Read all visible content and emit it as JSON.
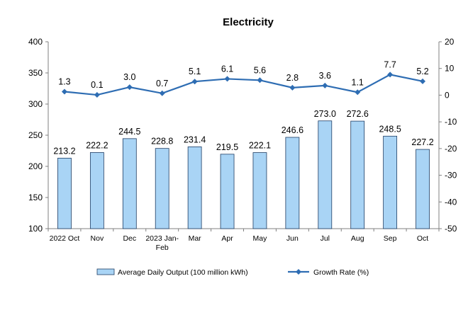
{
  "chart_data": {
    "type": "bar",
    "title": "Electricity",
    "categories": [
      "2022 Oct",
      "Nov",
      "Dec",
      "2023 Jan-Feb",
      "Mar",
      "Apr",
      "May",
      "Jun",
      "Jul",
      "Aug",
      "Sep",
      "Oct"
    ],
    "series": [
      {
        "name": "Average Daily Output (100 million kWh)",
        "type": "bar",
        "axis": "left",
        "color": "#a9d4f5",
        "labels": [
          "213.2",
          "222.2",
          "244.5",
          "228.8",
          "231.4",
          "219.5",
          "222.1",
          "246.6",
          "273.0",
          "272.6",
          "248.5",
          "227.2"
        ],
        "values": [
          213.2,
          222.2,
          244.5,
          228.8,
          231.4,
          219.5,
          222.1,
          246.6,
          273.0,
          272.6,
          248.5,
          227.2
        ]
      },
      {
        "name": "Growth Rate (%)",
        "type": "line",
        "axis": "right",
        "color": "#2e6db3",
        "labels": [
          "1.3",
          "0.1",
          "3.0",
          "0.7",
          "5.1",
          "6.1",
          "5.6",
          "2.8",
          "3.6",
          "1.1",
          "7.7",
          "5.2"
        ],
        "values": [
          1.3,
          0.1,
          3.0,
          0.7,
          5.1,
          6.1,
          5.6,
          2.8,
          3.6,
          1.1,
          7.7,
          5.2
        ]
      }
    ],
    "y_left": {
      "min": 100,
      "max": 400,
      "ticks": [
        "100",
        "150",
        "200",
        "250",
        "300",
        "350",
        "400"
      ]
    },
    "y_right": {
      "min": -50,
      "max": 20,
      "ticks": [
        "-50",
        "-40",
        "-30",
        "-20",
        "-10",
        "0",
        "10",
        "20"
      ]
    },
    "grid": false,
    "legend": "bottom"
  }
}
